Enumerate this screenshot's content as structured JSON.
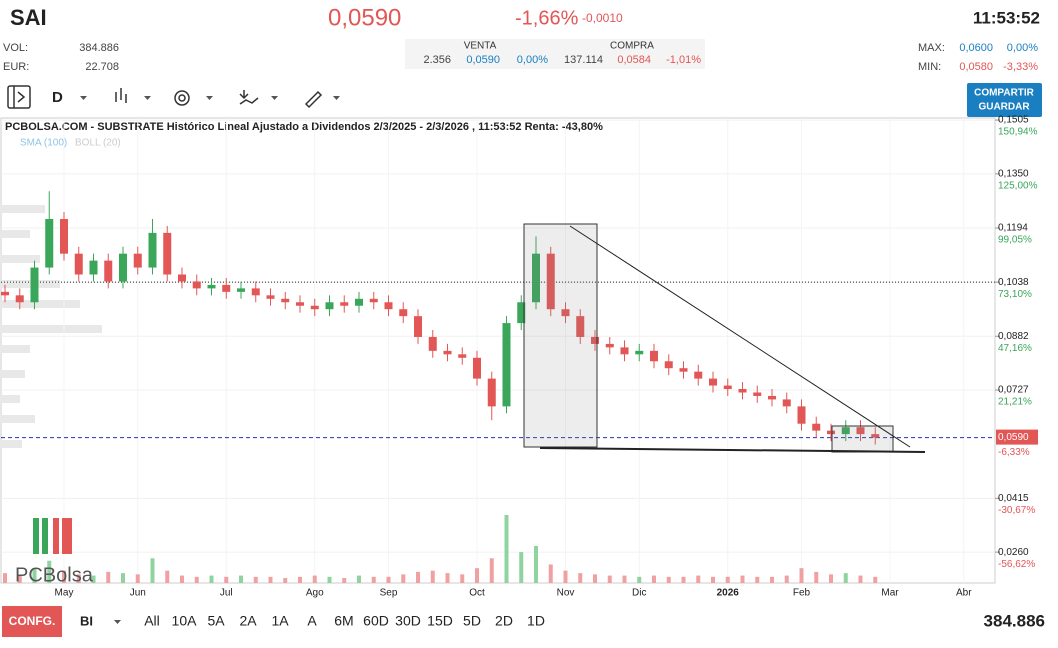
{
  "header": {
    "symbol": "SAI",
    "price": "0,0590",
    "change_pct": "-1,66%",
    "change": "-0,0010",
    "time": "11:53:52",
    "vol_label": "VOL:",
    "vol": "384.886",
    "eur_label": "EUR:",
    "eur": "22.708",
    "venta_label": "VENTA",
    "compra_label": "COMPRA",
    "venta": [
      "2.356",
      "0,0590",
      "0,00%"
    ],
    "compra": [
      "137.114",
      "0,0584",
      "-1,01%"
    ],
    "max_label": "MAX:",
    "max": [
      "0,0600",
      "0,00%"
    ],
    "min_label": "MIN:",
    "min": [
      "0,0580",
      "-3,33%"
    ],
    "timeframe": "D",
    "share_button": [
      "COMPARTIR",
      "GUARDAR"
    ]
  },
  "chart_data": {
    "type": "candlestick",
    "title": "PCBOLSA.COM - SUBSTRATE Histórico Lineal Ajustado a Dividendos 2/3/2025 - 2/3/2026 , 11:53:52 Renta: -43,80%",
    "indicators": [
      "SMA (100)",
      "BOLL (20)"
    ],
    "categories": [
      null,
      null,
      null,
      null,
      "May",
      null,
      null,
      null,
      null,
      "Jun",
      null,
      null,
      null,
      null,
      null,
      "Jul",
      null,
      null,
      null,
      null,
      null,
      "Ago",
      null,
      null,
      null,
      null,
      "Sep",
      null,
      null,
      null,
      null,
      null,
      "Oct",
      null,
      null,
      null,
      null,
      null,
      "Nov",
      null,
      null,
      null,
      null,
      "Dic",
      null,
      null,
      null,
      null,
      null,
      "2026",
      null,
      null,
      null,
      null,
      "Feb",
      null,
      null,
      null,
      null,
      null,
      "Mar",
      null,
      null,
      null,
      null,
      "Abr"
    ],
    "open": [
      0.101,
      0.1,
      0.098,
      0.108,
      0.122,
      0.112,
      0.106,
      0.11,
      0.104,
      0.112,
      0.108,
      0.118,
      0.106,
      0.104,
      0.102,
      0.103,
      0.101,
      0.102,
      0.1,
      0.099,
      0.098,
      0.097,
      0.096,
      0.098,
      0.097,
      0.099,
      0.098,
      0.096,
      0.094,
      0.088,
      0.084,
      0.083,
      0.082,
      0.076,
      0.068,
      0.092,
      0.098,
      0.112,
      0.096,
      0.094,
      0.088,
      0.086,
      0.085,
      0.083,
      0.084,
      0.081,
      0.079,
      0.078,
      0.076,
      0.074,
      0.073,
      0.072,
      0.071,
      0.07,
      0.068,
      0.063,
      0.061,
      0.06,
      0.062,
      0.06,
      null,
      null,
      null,
      null,
      null,
      null
    ],
    "high": [
      0.103,
      0.102,
      0.11,
      0.13,
      0.124,
      0.114,
      0.112,
      0.112,
      0.114,
      0.114,
      0.122,
      0.12,
      0.108,
      0.106,
      0.105,
      0.105,
      0.104,
      0.104,
      0.102,
      0.101,
      0.1,
      0.099,
      0.1,
      0.1,
      0.101,
      0.101,
      0.1,
      0.098,
      0.096,
      0.09,
      0.086,
      0.085,
      0.084,
      0.078,
      0.094,
      0.1,
      0.117,
      0.114,
      0.098,
      0.096,
      0.09,
      0.088,
      0.087,
      0.086,
      0.086,
      0.083,
      0.081,
      0.08,
      0.078,
      0.076,
      0.075,
      0.074,
      0.073,
      0.072,
      0.07,
      0.065,
      0.063,
      0.064,
      0.064,
      0.062,
      null,
      null,
      null,
      null,
      null,
      null
    ],
    "low": [
      0.098,
      0.096,
      0.096,
      0.106,
      0.11,
      0.104,
      0.104,
      0.102,
      0.102,
      0.106,
      0.106,
      0.104,
      0.102,
      0.1,
      0.1,
      0.099,
      0.099,
      0.098,
      0.097,
      0.096,
      0.095,
      0.094,
      0.094,
      0.095,
      0.095,
      0.096,
      0.094,
      0.092,
      0.086,
      0.082,
      0.081,
      0.08,
      0.074,
      0.064,
      0.066,
      0.09,
      0.096,
      0.094,
      0.092,
      0.086,
      0.084,
      0.083,
      0.081,
      0.081,
      0.079,
      0.077,
      0.076,
      0.074,
      0.072,
      0.071,
      0.07,
      0.069,
      0.068,
      0.066,
      0.061,
      0.059,
      0.058,
      0.058,
      0.058,
      0.057,
      null,
      null,
      null,
      null,
      null,
      null
    ],
    "close": [
      0.1,
      0.098,
      0.108,
      0.122,
      0.112,
      0.106,
      0.11,
      0.104,
      0.112,
      0.108,
      0.118,
      0.106,
      0.104,
      0.102,
      0.103,
      0.101,
      0.102,
      0.1,
      0.099,
      0.098,
      0.097,
      0.096,
      0.098,
      0.097,
      0.099,
      0.098,
      0.096,
      0.094,
      0.088,
      0.084,
      0.083,
      0.082,
      0.076,
      0.068,
      0.092,
      0.098,
      0.112,
      0.096,
      0.094,
      0.088,
      0.086,
      0.085,
      0.083,
      0.084,
      0.081,
      0.079,
      0.078,
      0.076,
      0.074,
      0.073,
      0.072,
      0.071,
      0.07,
      0.068,
      0.063,
      0.061,
      0.06,
      0.062,
      0.06,
      0.059,
      null,
      null,
      null,
      null,
      null,
      null
    ],
    "volume": [
      8,
      6,
      12,
      18,
      10,
      7,
      6,
      9,
      8,
      7,
      20,
      10,
      6,
      5,
      6,
      5,
      6,
      5,
      5,
      4,
      5,
      6,
      5,
      4,
      6,
      5,
      5,
      7,
      9,
      10,
      8,
      7,
      12,
      20,
      55,
      25,
      30,
      15,
      10,
      8,
      7,
      6,
      6,
      5,
      6,
      5,
      5,
      6,
      5,
      5,
      6,
      5,
      5,
      6,
      12,
      9,
      7,
      8,
      6,
      5,
      null,
      null,
      null,
      null,
      null,
      null
    ],
    "up_color": "#3aa65a",
    "down_color": "#e25656",
    "volume_up_color": "#8fd3a0",
    "volume_down_color": "#f0a0a0",
    "ylim": [
      0.0171,
      0.1511
    ],
    "yticks": [
      {
        "value": 0.1505,
        "label": "0,1505"
      },
      {
        "value": 0.135,
        "label": "0,1350"
      },
      {
        "value": 0.1194,
        "label": "0,1194"
      },
      {
        "value": 0.1038,
        "label": "0,1038"
      },
      {
        "value": 0.0882,
        "label": "0,0882"
      },
      {
        "value": 0.0727,
        "label": "0,0727"
      },
      {
        "value": 0.0415,
        "label": "0,0415"
      },
      {
        "value": 0.026,
        "label": "0,0260"
      }
    ],
    "ytick_changes": [
      "150,94%",
      "125,00%",
      "99,05%",
      "73,10%",
      "47,16%",
      "21,21%",
      "-30,67%",
      "-56,62%"
    ],
    "reference_line": 0.1038,
    "last": {
      "value": 0.059,
      "label": "0,0590",
      "change": "-6,33%"
    },
    "grid": true,
    "logo": "PCBolsa"
  },
  "footer": {
    "config": "CONFG.",
    "period": "BI",
    "ranges": [
      "All",
      "10A",
      "5A",
      "2A",
      "1A",
      "A",
      "6M",
      "60D",
      "30D",
      "15D",
      "5D",
      "2D",
      "1D"
    ],
    "volume": "384.886"
  }
}
